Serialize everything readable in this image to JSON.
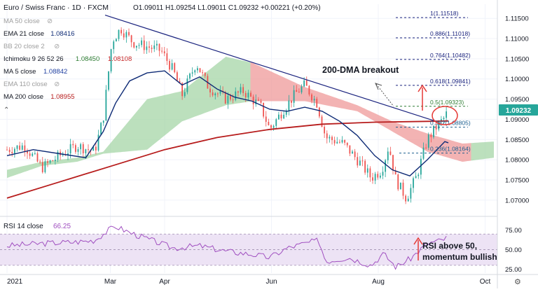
{
  "header": {
    "symbol": "Euro / Swiss Franc · 1D · FXCM",
    "ohlc": "O1.09011 H1.09254 L1.09011 C1.09232 +0.00221 (+0.20%)"
  },
  "indicators": [
    {
      "name": "MA 50 close",
      "value": "",
      "color": "#9e9e9e",
      "hidden": true
    },
    {
      "name": "EMA 21 close",
      "value": "1.08416",
      "color": "#0d2a75",
      "hidden": false
    },
    {
      "name": "BB 20 close 2",
      "value": "",
      "color": "#9e9e9e",
      "hidden": true
    },
    {
      "name": "Ichimoku 9 26 52 26",
      "value": "1.08450",
      "value2": "1.08108",
      "color": "#2e7d32",
      "color2": "#c62828",
      "hidden": false
    },
    {
      "name": "MA 5 close",
      "value": "1.08842",
      "color": "#1f3fa0",
      "hidden": false
    },
    {
      "name": "EMA 110 close",
      "value": "",
      "color": "#9e9e9e",
      "hidden": true
    },
    {
      "name": "MA 200 close",
      "value": "1.08955",
      "color": "#b71c1c",
      "hidden": false
    }
  ],
  "annotations": {
    "breakout": "200-DMA breakout",
    "rsi_note_line1": "RSI above 50,",
    "rsi_note_line2": "momentum bullish"
  },
  "fib_levels": [
    {
      "label": "1(1.11518)",
      "value": 1.11518
    },
    {
      "label": "0.886(1.11018)",
      "value": 1.11018
    },
    {
      "label": "0.764(1.10482)",
      "value": 1.10482
    },
    {
      "label": "0.618(1.09841)",
      "value": 1.09841
    },
    {
      "label": "0.5(1.09323)",
      "value": 1.09323
    },
    {
      "label": "0.382(1.08805)",
      "value": 1.08805
    },
    {
      "label": "0.236(1.08164)",
      "value": 1.08164
    }
  ],
  "rsi": {
    "label": "RSI 14 close",
    "value": "66.25"
  },
  "colors": {
    "up": "#26a69a",
    "down": "#ef5350",
    "ma200": "#b71c1c",
    "ema21": "#0d2a75",
    "cloud_bull": "#a5d6a7",
    "cloud_bear": "#ef9a9a",
    "rsi": "#a04fc0",
    "fib_up": "#1a237e",
    "fib_mid": "#2e7d32",
    "fib_low": "#1b5e8f"
  },
  "chart_data": {
    "type": "candlestick",
    "x_axis_labels": [
      {
        "label": "2021",
        "day": 0
      },
      {
        "label": "Mar",
        "day": 59
      },
      {
        "label": "Apr",
        "day": 90
      },
      {
        "label": "Jun",
        "day": 151
      },
      {
        "label": "Aug",
        "day": 212
      },
      {
        "label": "Oct",
        "day": 273
      }
    ],
    "y_ticks": [
      "1.11500",
      "1.11000",
      "1.10500",
      "1.10000",
      "1.09500",
      "1.09000",
      "1.08500",
      "1.08000",
      "1.07500",
      "1.07000"
    ],
    "y_tick_values": [
      1.115,
      1.11,
      1.105,
      1.1,
      1.095,
      1.09,
      1.085,
      1.08,
      1.075,
      1.07
    ],
    "ylim": [
      1.0665,
      1.1185
    ],
    "last_price": "1.09232",
    "last_price_value": 1.09232,
    "ma200": [
      [
        0,
        1.0705
      ],
      [
        30,
        1.0745
      ],
      [
        60,
        1.0785
      ],
      [
        90,
        1.0825
      ],
      [
        120,
        1.0855
      ],
      [
        150,
        1.0875
      ],
      [
        180,
        1.0888
      ],
      [
        210,
        1.0893
      ],
      [
        240,
        1.0895
      ],
      [
        252,
        1.0896
      ]
    ],
    "ema21": [
      [
        0,
        1.081
      ],
      [
        15,
        1.0825
      ],
      [
        30,
        1.0815
      ],
      [
        45,
        1.0805
      ],
      [
        55,
        1.087
      ],
      [
        62,
        1.094
      ],
      [
        70,
        1.0995
      ],
      [
        80,
        1.1015
      ],
      [
        90,
        1.102
      ],
      [
        100,
        1.0985
      ],
      [
        110,
        1.1005
      ],
      [
        120,
        1.0975
      ],
      [
        130,
        1.0955
      ],
      [
        140,
        1.0945
      ],
      [
        150,
        1.0925
      ],
      [
        160,
        1.092
      ],
      [
        170,
        1.093
      ],
      [
        180,
        1.092
      ],
      [
        190,
        1.0895
      ],
      [
        200,
        1.086
      ],
      [
        210,
        1.081
      ],
      [
        220,
        1.0775
      ],
      [
        230,
        1.076
      ],
      [
        240,
        1.08
      ],
      [
        250,
        1.0845
      ],
      [
        252,
        1.0842
      ]
    ],
    "price_path": [
      [
        0,
        1.0825
      ],
      [
        10,
        1.0835
      ],
      [
        20,
        1.078
      ],
      [
        30,
        1.081
      ],
      [
        40,
        1.0835
      ],
      [
        50,
        1.082
      ],
      [
        55,
        1.0905
      ],
      [
        60,
        1.1095
      ],
      [
        65,
        1.1125
      ],
      [
        72,
        1.109
      ],
      [
        80,
        1.108
      ],
      [
        88,
        1.107
      ],
      [
        95,
        1.102
      ],
      [
        100,
        1.096
      ],
      [
        108,
        1.104
      ],
      [
        115,
        1.098
      ],
      [
        125,
        1.095
      ],
      [
        135,
        1.097
      ],
      [
        145,
        1.093
      ],
      [
        150,
        1.0875
      ],
      [
        158,
        1.0925
      ],
      [
        165,
        1.0965
      ],
      [
        170,
        1.0985
      ],
      [
        177,
        1.094
      ],
      [
        182,
        1.0855
      ],
      [
        192,
        1.084
      ],
      [
        202,
        1.079
      ],
      [
        208,
        1.0755
      ],
      [
        214,
        1.0775
      ],
      [
        218,
        1.0835
      ],
      [
        222,
        1.075
      ],
      [
        228,
        1.0705
      ],
      [
        234,
        1.076
      ],
      [
        240,
        1.085
      ],
      [
        245,
        1.088
      ],
      [
        250,
        1.0905
      ],
      [
        252,
        1.0923
      ]
    ],
    "cloud": {
      "span_a": [
        [
          0,
          1.0775
        ],
        [
          20,
          1.0795
        ],
        [
          40,
          1.0805
        ],
        [
          55,
          1.082
        ],
        [
          80,
          1.095
        ],
        [
          100,
          1.097
        ],
        [
          125,
          1.1055
        ],
        [
          140,
          1.104
        ],
        [
          170,
          1.098
        ],
        [
          200,
          1.0935
        ],
        [
          220,
          1.0895
        ],
        [
          240,
          1.0865
        ],
        [
          260,
          1.084
        ],
        [
          278,
          1.0845
        ]
      ],
      "span_b": [
        [
          0,
          1.0755
        ],
        [
          20,
          1.0785
        ],
        [
          40,
          1.0795
        ],
        [
          55,
          1.0815
        ],
        [
          80,
          1.0825
        ],
        [
          100,
          1.0895
        ],
        [
          125,
          1.0935
        ],
        [
          140,
          1.0945
        ],
        [
          170,
          1.0945
        ],
        [
          200,
          1.092
        ],
        [
          220,
          1.087
        ],
        [
          240,
          1.082
        ],
        [
          260,
          1.0795
        ],
        [
          278,
          1.0805
        ]
      ]
    },
    "trendline": [
      [
        56,
        1.1158
      ],
      [
        245,
        1.0895
      ]
    ],
    "rsi_series": [
      [
        0,
        55
      ],
      [
        20,
        58
      ],
      [
        40,
        60
      ],
      [
        50,
        62
      ],
      [
        58,
        75
      ],
      [
        62,
        80
      ],
      [
        70,
        72
      ],
      [
        85,
        60
      ],
      [
        95,
        52
      ],
      [
        110,
        55
      ],
      [
        125,
        48
      ],
      [
        140,
        44
      ],
      [
        150,
        40
      ],
      [
        160,
        52
      ],
      [
        170,
        58
      ],
      [
        178,
        62
      ],
      [
        182,
        35
      ],
      [
        195,
        40
      ],
      [
        208,
        30
      ],
      [
        215,
        45
      ],
      [
        222,
        28
      ],
      [
        230,
        38
      ],
      [
        240,
        58
      ],
      [
        248,
        62
      ],
      [
        252,
        66
      ]
    ],
    "rsi_ticks": [
      "75.00",
      "50.00",
      "25.00"
    ],
    "rsi_tick_values": [
      75,
      50,
      25
    ]
  }
}
